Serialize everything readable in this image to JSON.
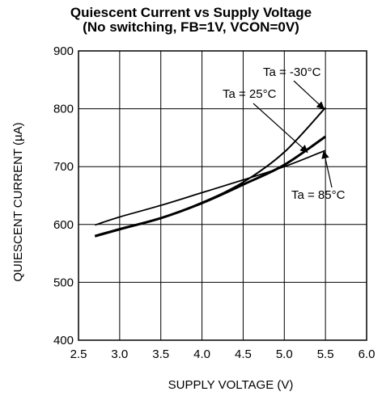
{
  "chart_data": {
    "type": "line",
    "title": "Quiescent Current vs Supply Voltage",
    "subtitle": "(No switching, FB=1V, VCON=0V)",
    "xlabel": "SUPPLY VOLTAGE (V)",
    "ylabel": "QUIESCENT CURRENT (µA)",
    "xlim": [
      2.5,
      6.0
    ],
    "ylim": [
      400,
      900
    ],
    "xticks": [
      2.5,
      3.0,
      3.5,
      4.0,
      4.5,
      5.0,
      5.5,
      6.0
    ],
    "xtick_labels": [
      "2.5",
      "3.0",
      "3.5",
      "4.0",
      "4.5",
      "5.0",
      "5.5",
      "6.0"
    ],
    "yticks": [
      400,
      500,
      600,
      700,
      800,
      900
    ],
    "ytick_labels": [
      "400",
      "500",
      "600",
      "700",
      "800",
      "900"
    ],
    "grid": true,
    "series": [
      {
        "name": "Ta = -30°C",
        "x": [
          2.7,
          3.0,
          3.5,
          4.0,
          4.5,
          5.0,
          5.5
        ],
        "y": [
          579,
          591,
          611,
          638,
          673,
          725,
          802
        ]
      },
      {
        "name": "Ta = 25°C",
        "x": [
          2.7,
          3.0,
          3.5,
          4.0,
          4.5,
          5.0,
          5.5
        ],
        "y": [
          580,
          592,
          611,
          637,
          669,
          703,
          752
        ]
      },
      {
        "name": "Ta = 85°C",
        "x": [
          2.7,
          3.0,
          3.5,
          4.0,
          4.5,
          5.0,
          5.5
        ],
        "y": [
          599,
          613,
          633,
          655,
          677,
          700,
          728
        ]
      }
    ],
    "annotations": [
      {
        "text": "Ta = -30°C",
        "target_x": 5.48,
        "target_y": 800
      },
      {
        "text": "Ta = 25°C",
        "target_x": 5.28,
        "target_y": 725
      },
      {
        "text": "Ta = 85°C",
        "target_x": 5.48,
        "target_y": 726
      }
    ]
  }
}
